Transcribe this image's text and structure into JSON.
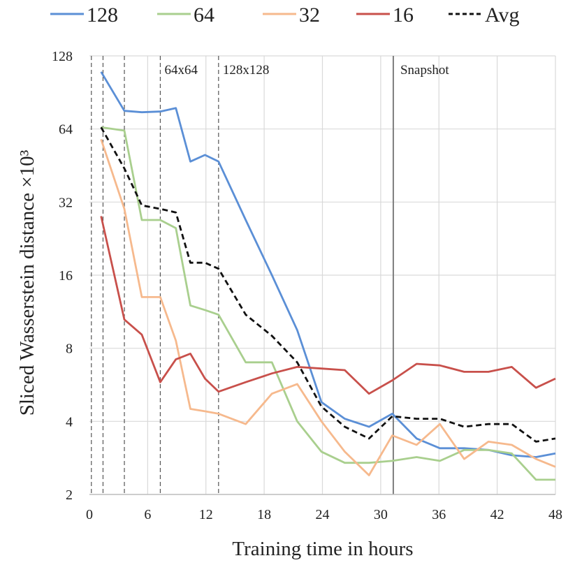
{
  "chart_data": {
    "type": "line",
    "xlabel": "Training time in hours",
    "ylabel": "Sliced Wasserstein distance ×10³",
    "xlim": [
      0,
      48
    ],
    "ylim": [
      2,
      128
    ],
    "y_scale": "log2",
    "grid": true,
    "legend_position": "top",
    "x_ticks": [
      0,
      6,
      12,
      18,
      24,
      30,
      36,
      42,
      48
    ],
    "y_ticks": [
      2,
      4,
      8,
      16,
      32,
      64,
      128
    ],
    "resolution_markers": [
      0.2,
      1.4,
      3.6,
      7.3,
      13.3
    ],
    "resolution_labels": [
      {
        "x": 7.3,
        "text": "64x64"
      },
      {
        "x": 13.3,
        "text": "128x128"
      }
    ],
    "snapshot": {
      "x": 31.3,
      "label": "Snapshot",
      "color": "#7f7f7f"
    },
    "x": [
      1.2,
      3.6,
      5.4,
      7.3,
      8.9,
      10.4,
      11.9,
      13.3,
      16.1,
      18.8,
      21.4,
      23.9,
      26.3,
      28.8,
      31.2,
      33.7,
      36.1,
      38.6,
      41.1,
      43.5,
      46.0,
      48.0
    ],
    "series": [
      {
        "name": "128",
        "color": "#5b8fd6",
        "dashed": false,
        "values": [
          110,
          76,
          75,
          75.5,
          78,
          47,
          50,
          47,
          27,
          16,
          9.5,
          4.8,
          4.1,
          3.8,
          4.3,
          3.4,
          3.1,
          3.1,
          3.05,
          2.9,
          2.85,
          2.95
        ]
      },
      {
        "name": "64",
        "color": "#a9cf8e",
        "dashed": false,
        "values": [
          65,
          63,
          27,
          27,
          25,
          12,
          11.5,
          11,
          7,
          7,
          4,
          3,
          2.7,
          2.7,
          2.75,
          2.85,
          2.75,
          3.05,
          3.05,
          2.95,
          2.3,
          2.3
        ]
      },
      {
        "name": "32",
        "color": "#f6b98d",
        "dashed": false,
        "values": [
          58,
          30,
          13,
          13,
          8.6,
          4.5,
          4.4,
          4.3,
          3.9,
          5.2,
          5.7,
          4,
          3,
          2.4,
          3.5,
          3.2,
          3.9,
          2.8,
          3.3,
          3.2,
          2.8,
          2.6
        ]
      },
      {
        "name": "16",
        "color": "#c8504b",
        "dashed": false,
        "values": [
          28,
          10.5,
          9.1,
          5.8,
          7.2,
          7.6,
          6,
          5.3,
          5.8,
          6.3,
          6.7,
          6.6,
          6.5,
          5.2,
          5.9,
          6.9,
          6.8,
          6.4,
          6.4,
          6.7,
          5.5,
          6
        ]
      },
      {
        "name": "Avg",
        "color": "#111111",
        "dashed": true,
        "values": [
          65,
          44,
          31,
          30,
          29,
          18,
          18,
          17,
          11,
          9,
          7,
          4.6,
          3.8,
          3.4,
          4.2,
          4.1,
          4.1,
          3.8,
          3.9,
          3.9,
          3.3,
          3.4
        ]
      }
    ]
  }
}
